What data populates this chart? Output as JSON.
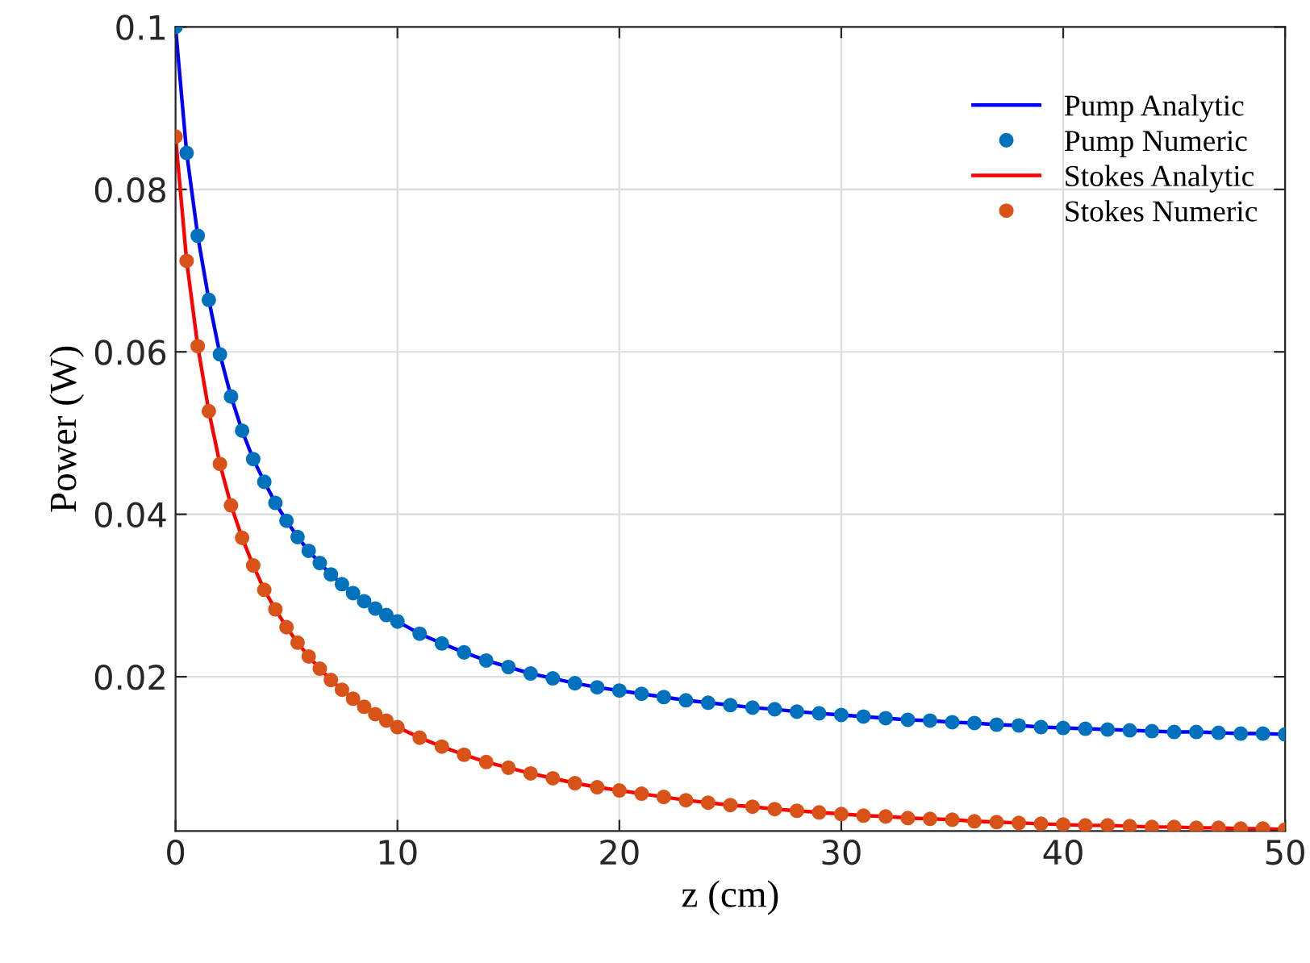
{
  "chart_data": {
    "type": "line",
    "xlabel": "z (cm)",
    "ylabel": "Power (W)",
    "x": [
      0,
      0.5,
      1,
      1.5,
      2,
      2.5,
      3,
      3.5,
      4,
      4.5,
      5,
      5.5,
      6,
      6.5,
      7,
      7.5,
      8,
      8.5,
      9,
      9.5,
      10,
      11,
      12,
      13,
      14,
      15,
      16,
      17,
      18,
      19,
      20,
      21,
      22,
      23,
      24,
      25,
      26,
      27,
      28,
      29,
      30,
      31,
      32,
      33,
      34,
      35,
      36,
      37,
      38,
      39,
      40,
      41,
      42,
      43,
      44,
      45,
      46,
      47,
      48,
      49,
      50
    ],
    "series": [
      {
        "name": "Pump Analytic",
        "marker": "none",
        "color": "#0000ff",
        "values": [
          0.1,
          0.0845,
          0.0743,
          0.0664,
          0.0597,
          0.0545,
          0.0503,
          0.0468,
          0.044,
          0.0414,
          0.0392,
          0.0372,
          0.0355,
          0.034,
          0.0326,
          0.0314,
          0.0303,
          0.0293,
          0.0284,
          0.0276,
          0.0268,
          0.0253,
          0.0241,
          0.023,
          0.022,
          0.0212,
          0.0204,
          0.0198,
          0.0192,
          0.0187,
          0.0183,
          0.0179,
          0.0175,
          0.0171,
          0.0168,
          0.0165,
          0.0162,
          0.016,
          0.0157,
          0.0155,
          0.0153,
          0.0151,
          0.0149,
          0.0147,
          0.0146,
          0.0144,
          0.0143,
          0.0141,
          0.014,
          0.0138,
          0.0137,
          0.0136,
          0.0135,
          0.0134,
          0.0133,
          0.0132,
          0.0132,
          0.0131,
          0.013,
          0.013,
          0.0129
        ]
      },
      {
        "name": "Pump Numeric",
        "type": "scatter",
        "marker": "circle",
        "color": "#0072bd",
        "values": [
          0.1,
          0.0845,
          0.0743,
          0.0664,
          0.0597,
          0.0545,
          0.0503,
          0.0468,
          0.044,
          0.0414,
          0.0392,
          0.0372,
          0.0355,
          0.034,
          0.0326,
          0.0314,
          0.0303,
          0.0293,
          0.0284,
          0.0276,
          0.0268,
          0.0253,
          0.0241,
          0.023,
          0.022,
          0.0212,
          0.0204,
          0.0198,
          0.0192,
          0.0187,
          0.0183,
          0.0179,
          0.0175,
          0.0171,
          0.0168,
          0.0165,
          0.0162,
          0.016,
          0.0157,
          0.0155,
          0.0153,
          0.0151,
          0.0149,
          0.0147,
          0.0146,
          0.0144,
          0.0143,
          0.0141,
          0.014,
          0.0138,
          0.0137,
          0.0136,
          0.0135,
          0.0134,
          0.0133,
          0.0132,
          0.0132,
          0.0131,
          0.013,
          0.013,
          0.0129
        ]
      },
      {
        "name": "Stokes Analytic",
        "marker": "none",
        "color": "#ff0000",
        "values": [
          0.0865,
          0.0712,
          0.0607,
          0.0527,
          0.0462,
          0.0411,
          0.0371,
          0.0337,
          0.0307,
          0.0283,
          0.0261,
          0.0242,
          0.0225,
          0.021,
          0.0196,
          0.0184,
          0.0173,
          0.0163,
          0.0154,
          0.0146,
          0.0138,
          0.0125,
          0.0114,
          0.0104,
          0.0095,
          0.0088,
          0.0081,
          0.0075,
          0.0069,
          0.0064,
          0.006,
          0.0056,
          0.0052,
          0.0048,
          0.0045,
          0.0042,
          0.004,
          0.0037,
          0.0035,
          0.0033,
          0.0031,
          0.0029,
          0.0028,
          0.0026,
          0.0025,
          0.0024,
          0.0022,
          0.0021,
          0.002,
          0.0019,
          0.0018,
          0.0017,
          0.0017,
          0.0016,
          0.0015,
          0.0015,
          0.0014,
          0.0014,
          0.0013,
          0.0013,
          0.0012
        ]
      },
      {
        "name": "Stokes Numeric",
        "type": "scatter",
        "marker": "circle",
        "color": "#d95319",
        "values": [
          0.0865,
          0.0712,
          0.0607,
          0.0527,
          0.0462,
          0.0411,
          0.0371,
          0.0337,
          0.0307,
          0.0283,
          0.0261,
          0.0242,
          0.0225,
          0.021,
          0.0196,
          0.0184,
          0.0173,
          0.0163,
          0.0154,
          0.0146,
          0.0138,
          0.0125,
          0.0114,
          0.0104,
          0.0095,
          0.0088,
          0.0081,
          0.0075,
          0.0069,
          0.0064,
          0.006,
          0.0056,
          0.0052,
          0.0048,
          0.0045,
          0.0042,
          0.004,
          0.0037,
          0.0035,
          0.0033,
          0.0031,
          0.0029,
          0.0028,
          0.0026,
          0.0025,
          0.0024,
          0.0022,
          0.0021,
          0.002,
          0.0019,
          0.0018,
          0.0017,
          0.0017,
          0.0016,
          0.0015,
          0.0015,
          0.0014,
          0.0014,
          0.0013,
          0.0013,
          0.0012
        ]
      }
    ],
    "xlim": [
      0,
      50
    ],
    "xticks": [
      0,
      10,
      20,
      30,
      40,
      50
    ],
    "ylim": [
      0.001,
      0.1
    ],
    "yticks": [
      {
        "value": 0.02,
        "label": "0.02"
      },
      {
        "value": 0.04,
        "label": "0.04"
      },
      {
        "value": 0.06,
        "label": "0.06"
      },
      {
        "value": 0.08,
        "label": "0.08"
      },
      {
        "value": 0.1,
        "label": "0.1"
      }
    ],
    "grid": true,
    "legend": "top right"
  }
}
